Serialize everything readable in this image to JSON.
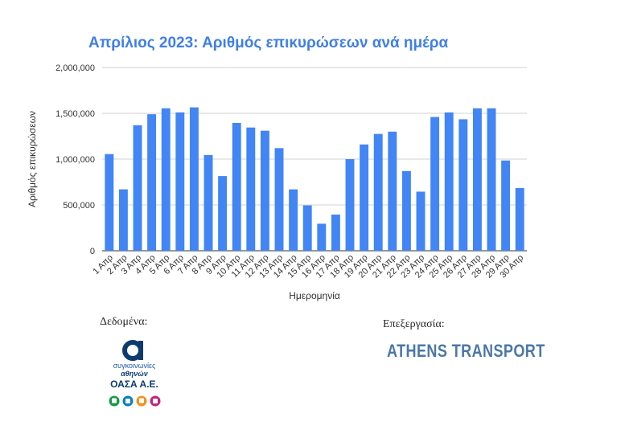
{
  "chart_data": {
    "type": "bar",
    "title": "Απρίλιος 2023: Αριθμός επικυρώσεων ανά ημέρα",
    "xlabel": "Ημερομηνία",
    "ylabel": "Αριθμός επικυρώσεων",
    "ylim": [
      0,
      2000000
    ],
    "yticks": [
      "0",
      "500,000",
      "1,000,000",
      "1,500,000",
      "2,000,000"
    ],
    "grid": true,
    "bar_color": "#4285f4",
    "categories": [
      "1 Απρ",
      "2 Απρ",
      "3 Απρ",
      "4 Απρ",
      "5 Απρ",
      "6 Απρ",
      "7 Απρ",
      "8 Απρ",
      "9 Απρ",
      "10 Απρ",
      "11 Απρ",
      "12 Απρ",
      "13 Απρ",
      "14 Απρ",
      "15 Απρ",
      "16 Απρ",
      "17 Απρ",
      "18 Απρ",
      "19 Απρ",
      "20 Απρ",
      "21 Απρ",
      "22 Απρ",
      "23 Απρ",
      "24 Απρ",
      "25 Απρ",
      "26 Απρ",
      "27 Απρ",
      "28 Απρ",
      "29 Απρ",
      "30 Απρ"
    ],
    "values": [
      1055000,
      670000,
      1370000,
      1490000,
      1555000,
      1510000,
      1565000,
      1045000,
      815000,
      1395000,
      1345000,
      1310000,
      1120000,
      670000,
      495000,
      295000,
      395000,
      1000000,
      1160000,
      1275000,
      1300000,
      870000,
      645000,
      1460000,
      1510000,
      1435000,
      1555000,
      1555000,
      985000,
      685000
    ]
  },
  "footer": {
    "source_label": "Δεδομένα:",
    "processing_label": "Επεξεργασία:",
    "oasa": {
      "line1": "συγκοινωνίες",
      "line2": "αθηνών",
      "line3": "ΟΑΣΑ Α.Ε.",
      "accent": "#1e5ba8",
      "icon_colors": [
        "#1a9b4b",
        "#0b7fc1",
        "#f29320",
        "#c2267c"
      ]
    },
    "brand_text": "ATHENS TRANSPORT"
  }
}
